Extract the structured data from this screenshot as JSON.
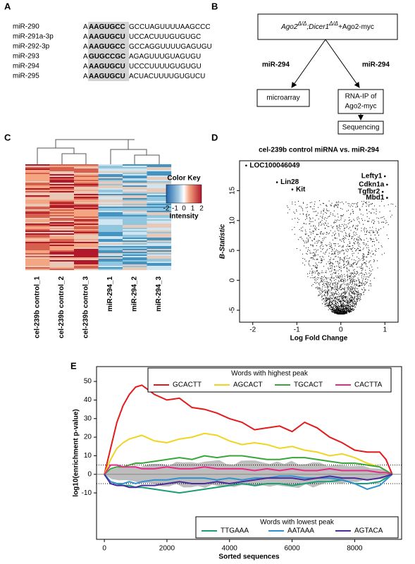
{
  "panel_labels": [
    "A",
    "B",
    "C",
    "D",
    "E"
  ],
  "panel_a": {
    "rows": [
      {
        "name": "miR-290",
        "lead": "A",
        "seed": "AAGUGCC",
        "tail": "GCCUAGUUUUAAGCCC"
      },
      {
        "name": "miR-291a-3p",
        "lead": "A",
        "seed": "AAGUGCU",
        "tail": "UCCACUUUGUGUGC"
      },
      {
        "name": "miR-292-3p",
        "lead": "A",
        "seed": "AAGUGCC",
        "tail": "GCCAGGUUUUGAGUGU"
      },
      {
        "name": "miR-293",
        "lead": "A",
        "seed": "GUGCCGC",
        "tail": "AGAGUUUGUAGUGU"
      },
      {
        "name": "miR-294",
        "lead": "A",
        "seed": "AAGUGCU",
        "tail": "UCCCUUUUGUGUGU"
      },
      {
        "name": "miR-295",
        "lead": "A",
        "seed": "AAGUGCU",
        "tail": "ACUACUUUUGUGUCU"
      }
    ]
  },
  "panel_b": {
    "top": [
      "Ago2",
      "Δ/Δ",
      ";Dicer1",
      "Δ/Δ",
      "+Ago2-myc"
    ],
    "left_arrow": "miR-294",
    "right_arrow": "miR-294",
    "microarray": "microarray",
    "rnaip": [
      "RNA-IP of",
      "Ago2-myc"
    ],
    "sequencing": "Sequencing"
  },
  "panel_c": {
    "columns": [
      "cel-239b control_1",
      "cel-239b control_2",
      "cel-239b control_3",
      "miR-294_1",
      "miR-294_2",
      "miR-294_3"
    ],
    "color_key": {
      "title": "Color Key",
      "ticks": [
        -2,
        -1,
        0,
        1,
        2
      ],
      "label": "Intensity"
    }
  },
  "chart_data": [
    {
      "type": "scatter",
      "title": "cel-239b control miRNA vs. miR-294",
      "x_label": "Log Fold Change",
      "y_label": "B-Statistic",
      "x": [
        -2.15,
        -1.45,
        -1.1,
        1.0,
        1.05,
        0.95,
        1.05
      ],
      "values": [
        19.2,
        16.4,
        15.2,
        17.4,
        16.0,
        14.8,
        13.8
      ],
      "labels": [
        "LOC100046049",
        "Lin28",
        "Kit",
        "Lefty1",
        "Cdkn1a",
        "Tgfbr2",
        "Mbd1"
      ],
      "label_color": "#2b2b8c",
      "xlim": [
        -2.3,
        1.3
      ],
      "xticks": [
        -2,
        -1,
        0,
        1
      ],
      "ylim": [
        -7,
        20
      ],
      "yticks": [
        -5,
        0,
        5,
        10,
        15
      ]
    },
    {
      "type": "line",
      "x_label": "Sorted sequences",
      "y_label": "log10(enrichment p-value)",
      "x": [
        0,
        200,
        400,
        600,
        800,
        1000,
        1200,
        1600,
        2000,
        2400,
        2800,
        3200,
        3600,
        4000,
        4400,
        4800,
        5200,
        5600,
        6000,
        6400,
        6800,
        7200,
        7600,
        8000,
        8400,
        8800,
        9000,
        9200
      ],
      "legend_titles": [
        "Words with highest peak",
        "Words with lowest peak"
      ],
      "series": [
        {
          "name": "GCACTT",
          "color": "#e41a1c",
          "legend_group": 0,
          "values": [
            0,
            14,
            28,
            37,
            43,
            47,
            48,
            43,
            40,
            41,
            36,
            35,
            33,
            30,
            28,
            24,
            25,
            26,
            23,
            28,
            25,
            20,
            17,
            13,
            12,
            12,
            8,
            0
          ]
        },
        {
          "name": "AGCACT",
          "color": "#f0d520",
          "legend_group": 0,
          "values": [
            0,
            8,
            14,
            17,
            19,
            20,
            21,
            18,
            17,
            19,
            20,
            22,
            21,
            18,
            16,
            17,
            16,
            14,
            15,
            13,
            12,
            10,
            11,
            9,
            6,
            4,
            2,
            0
          ]
        },
        {
          "name": "TGCACT",
          "color": "#3aa53a",
          "legend_group": 0,
          "values": [
            0,
            3,
            4,
            4,
            5,
            6,
            6,
            7,
            8,
            9,
            8,
            10,
            9,
            10,
            10,
            9,
            8,
            8,
            9,
            9,
            8,
            7,
            6,
            6,
            5,
            4,
            2,
            0
          ]
        },
        {
          "name": "CACTTA",
          "color": "#e7298a",
          "legend_group": 0,
          "values": [
            0,
            5,
            5,
            4,
            4,
            4,
            3,
            3,
            4,
            3,
            3,
            4,
            3,
            3,
            3,
            2,
            3,
            2,
            3,
            2,
            2,
            3,
            2,
            2,
            2,
            1,
            1,
            0
          ]
        },
        {
          "name": "TTGAAA",
          "color": "#1b9e77",
          "legend_group": 1,
          "values": [
            0,
            -4,
            -5,
            -6,
            -6,
            -7,
            -7,
            -8,
            -9,
            -10,
            -9,
            -8,
            -7,
            -6,
            -5,
            -6,
            -5,
            -5,
            -6,
            -5,
            -4,
            -4,
            -3,
            -5,
            -5,
            -4,
            -2,
            0
          ]
        },
        {
          "name": "AATAAA",
          "color": "#3090d0",
          "legend_group": 1,
          "values": [
            0,
            -4,
            -5,
            -5,
            -4,
            -5,
            -4,
            -3,
            -3,
            -2,
            -2,
            -2,
            -3,
            -2,
            -3,
            -2,
            -2,
            -1,
            -1,
            -2,
            -2,
            -2,
            -3,
            -5,
            -8,
            -6,
            -3,
            0
          ]
        },
        {
          "name": "AGTACA",
          "color": "#4b2a9a",
          "legend_group": 1,
          "values": [
            0,
            -5,
            -6,
            -6,
            -7,
            -7,
            -6,
            -6,
            -5,
            -4,
            -5,
            -5,
            -4,
            -5,
            -4,
            -3,
            -2,
            -2,
            -2,
            -3,
            -2,
            -1,
            -2,
            -2,
            -3,
            -2,
            -1,
            0
          ]
        }
      ],
      "hlines": [
        5,
        -5
      ],
      "xlim": [
        -250,
        9500
      ],
      "xticks": [
        0,
        2000,
        4000,
        6000,
        8000
      ],
      "ylim": [
        -35,
        58
      ],
      "yticks": [
        -10,
        0,
        10,
        20,
        30,
        40,
        50
      ]
    }
  ]
}
